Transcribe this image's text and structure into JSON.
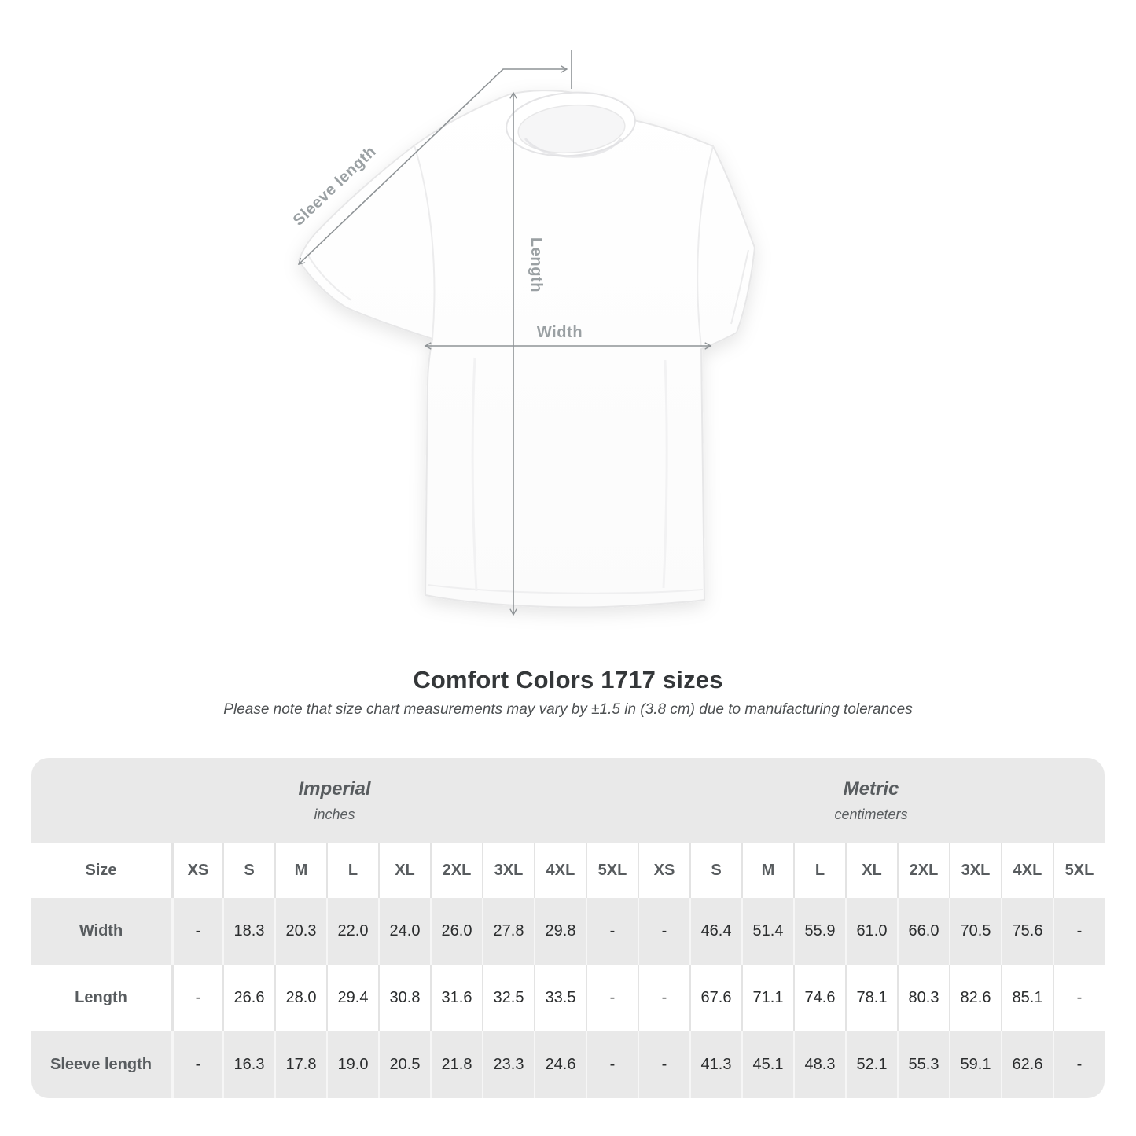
{
  "title": "Comfort Colors 1717 sizes",
  "subtitle": "Please note that size chart measurements may vary by ±1.5 in (3.8 cm) due to manufacturing tolerances",
  "diagram": {
    "sleeve_length_label": "Sleeve length",
    "length_label": "Length",
    "width_label": "Width"
  },
  "chart_data": {
    "type": "table",
    "title": "Comfort Colors 1717 sizes",
    "size_header": "Size",
    "unit_groups": [
      {
        "label": "Imperial",
        "sublabel": "inches"
      },
      {
        "label": "Metric",
        "sublabel": "centimeters"
      }
    ],
    "sizes": [
      "XS",
      "S",
      "M",
      "L",
      "XL",
      "2XL",
      "3XL",
      "4XL",
      "5XL"
    ],
    "rows": [
      {
        "label": "Width",
        "imperial": [
          "-",
          "18.3",
          "20.3",
          "22.0",
          "24.0",
          "26.0",
          "27.8",
          "29.8",
          "-"
        ],
        "metric": [
          "-",
          "46.4",
          "51.4",
          "55.9",
          "61.0",
          "66.0",
          "70.5",
          "75.6",
          "-"
        ]
      },
      {
        "label": "Length",
        "imperial": [
          "-",
          "26.6",
          "28.0",
          "29.4",
          "30.8",
          "31.6",
          "32.5",
          "33.5",
          "-"
        ],
        "metric": [
          "-",
          "67.6",
          "71.1",
          "74.6",
          "78.1",
          "80.3",
          "82.6",
          "85.1",
          "-"
        ]
      },
      {
        "label": "Sleeve length",
        "imperial": [
          "-",
          "16.3",
          "17.8",
          "19.0",
          "20.5",
          "21.8",
          "23.3",
          "24.6",
          "-"
        ],
        "metric": [
          "-",
          "41.3",
          "45.1",
          "48.3",
          "52.1",
          "55.3",
          "59.1",
          "62.6",
          "-"
        ]
      }
    ]
  },
  "colors": {
    "band_gray": "#e9e9e9",
    "label_gray": "#585c5f",
    "value_dark": "#2b2d2e",
    "annotation_gray": "#9aa0a3",
    "arrow_gray": "#8e9396"
  }
}
